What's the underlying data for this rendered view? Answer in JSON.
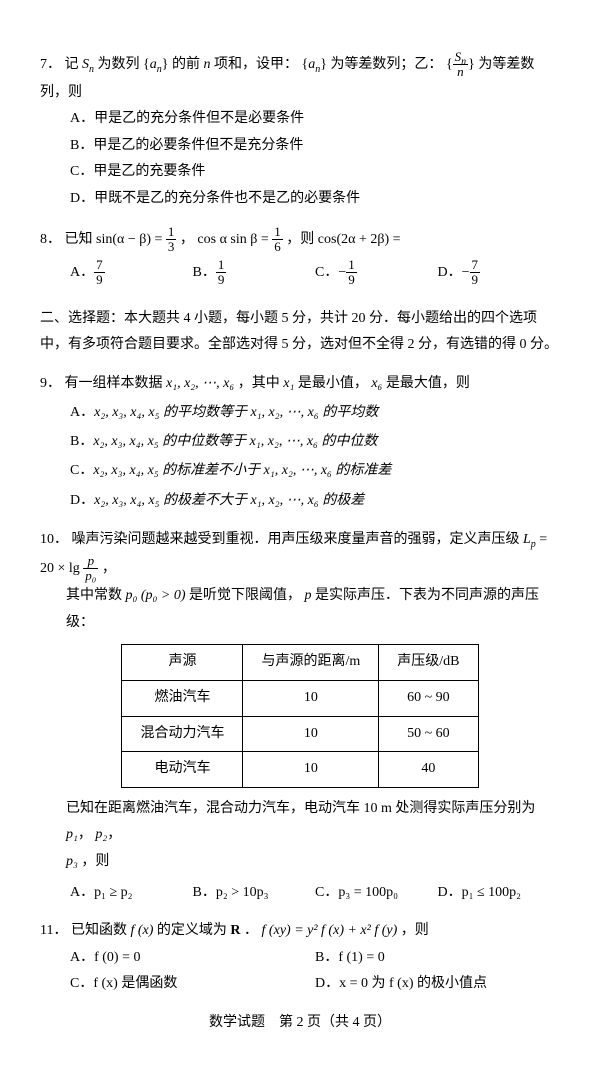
{
  "q7": {
    "num": "7．",
    "stem_a": "记",
    "stem_b": "为数列",
    "stem_c": "的前",
    "stem_d": "项和，设甲：",
    "stem_e": "为等差数列；乙：",
    "stem_f": "为等差数列，则",
    "var_Sn": "S",
    "var_an": "a",
    "var_n": "n",
    "optA": "A．甲是乙的充分条件但不是必要条件",
    "optB": "B．甲是乙的必要条件但不是充分条件",
    "optC": "C．甲是乙的充要条件",
    "optD": "D．甲既不是乙的充分条件也不是乙的必要条件"
  },
  "q8": {
    "num": "8．",
    "stem_a": "已知",
    "eq1_l": "sin(α − β) =",
    "eq1_num": "1",
    "eq1_den": "3",
    "stem_b": "，",
    "eq2_l": "cos α sin β =",
    "eq2_num": "1",
    "eq2_den": "6",
    "stem_c": "，则",
    "eq3": "cos(2α + 2β) =",
    "A": "A．",
    "A_num": "7",
    "A_den": "9",
    "B": "B．",
    "B_num": "1",
    "B_den": "9",
    "C": "C．",
    "C_neg": "−",
    "C_num": "1",
    "C_den": "9",
    "D": "D．",
    "D_neg": "−",
    "D_num": "7",
    "D_den": "9"
  },
  "section2": "二、选择题：本大题共 4 小题，每小题 5 分，共计 20 分．每小题给出的四个选项中，有多项符合题目要求。全部选对得 5 分，选对但不全得 2 分，有选错的得 0 分。",
  "q9": {
    "num": "9．",
    "stem_a": "有一组样本数据",
    "vars": "x₁, x₂, ⋯, x₆",
    "stem_b": "，其中",
    "x1": "x₁",
    "stem_c": "是最小值，",
    "x6": "x₆",
    "stem_d": "是最大值，则",
    "A_pre": "A．",
    "A_body": "x₂, x₃, x₄, x₅ 的平均数等于 x₁, x₂, ⋯, x₆ 的平均数",
    "B_pre": "B．",
    "B_body": "x₂, x₃, x₄, x₅ 的中位数等于 x₁, x₂, ⋯, x₆ 的中位数",
    "C_pre": "C．",
    "C_body": "x₂, x₃, x₄, x₅ 的标准差不小于 x₁, x₂, ⋯, x₆ 的标准差",
    "D_pre": "D．",
    "D_body": "x₂, x₃, x₄, x₅ 的极差不大于 x₁, x₂, ⋯, x₆ 的极差"
  },
  "q10": {
    "num": "10．",
    "stem_a": "噪声污染问题越来越受到重视．用声压级来度量声音的强弱，定义声压级",
    "Lp": "L",
    "Lp_sub": "p",
    "eq_a": " = 20 × lg",
    "frac_num": "p",
    "frac_den": "p₀",
    "stem_end": "，",
    "line2_a": "其中常数",
    "p0": "p₀ (p₀ > 0)",
    "line2_b": "是听觉下限阈值，",
    "p": "p",
    "line2_c": "是实际声压．下表为不同声源的声压级：",
    "th1": "声源",
    "th2": "与声源的距离/m",
    "th3": "声压级/dB",
    "rows": [
      [
        "燃油汽车",
        "10",
        "60 ~ 90"
      ],
      [
        "混合动力汽车",
        "10",
        "50 ~ 60"
      ],
      [
        "电动汽车",
        "10",
        "40"
      ]
    ],
    "line3_a": "已知在距离燃油汽车，混合动力汽车，电动汽车 10 m 处测得实际声压分别为",
    "p1": "p₁",
    "p2": "p₂",
    "p3": "p₃",
    "line3_b": "，则",
    "A": "A．p₁ ≥ p₂",
    "B": "B．p₂ > 10p₃",
    "C": "C．p₃ = 100p₀",
    "D": "D．p₁ ≤ 100p₂"
  },
  "q11": {
    "num": "11．",
    "stem_a": "已知函数",
    "fx": "f (x)",
    "stem_b": "的定义域为",
    "R": "R",
    "stem_c": "．",
    "eq": "f (xy) = y² f (x) + x² f (y)",
    "stem_d": "，则",
    "A": "A．f (0) = 0",
    "B": "B．f (1) = 0",
    "C": "C．f (x) 是偶函数",
    "D": "D．x = 0 为 f (x) 的极小值点"
  },
  "footer": "数学试题　第 2 页（共 4 页）"
}
